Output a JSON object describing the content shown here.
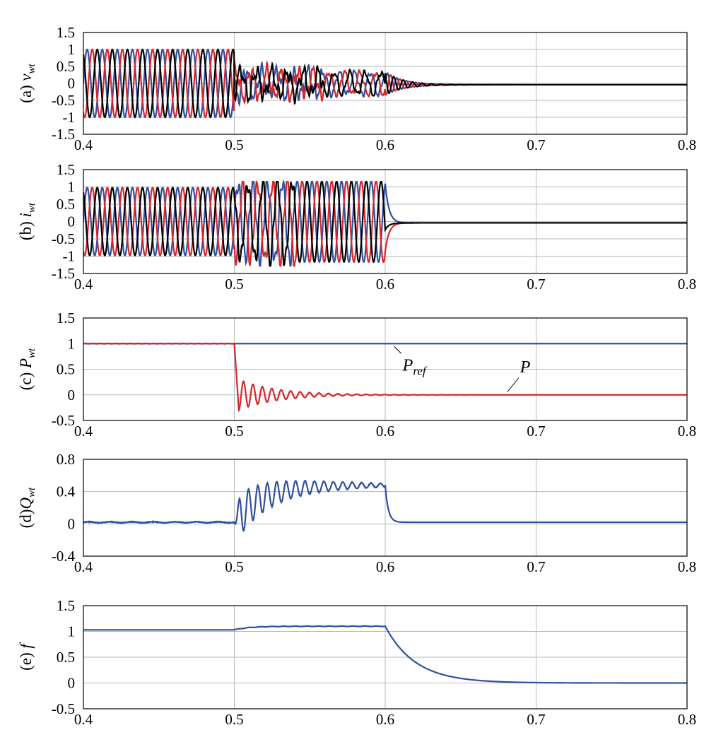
{
  "chart_data": [
    {
      "type": "line",
      "ylabel": "(a) ",
      "ylabel_var": "v",
      "ylabel_sub": "wt",
      "xlim": [
        0.4,
        0.8
      ],
      "ylim": [
        -1.5,
        1.5
      ],
      "xticks": [
        "0.4",
        "0.5",
        "0.6",
        "0.7",
        "0.8"
      ],
      "yticks": [
        "1.5",
        "1",
        "0.5",
        "0",
        "-0.5",
        "-1",
        "-1.5"
      ],
      "grid": true,
      "signal": "three-phase voltage: amplitude 1 pu at 100 Hz until fault at 0.5 s, distorted ~0.3 pu during fault, decays to 0 after 0.6 s",
      "series": [
        {
          "color": "#2f4fa0",
          "phase_deg": 0
        },
        {
          "color": "#d7262b",
          "phase_deg": -120
        },
        {
          "color": "#000000",
          "phase_deg": 120
        }
      ]
    },
    {
      "type": "line",
      "ylabel": "(b) ",
      "ylabel_var": "i",
      "ylabel_sub": "wt",
      "xlim": [
        0.4,
        0.8
      ],
      "ylim": [
        -1.5,
        1.5
      ],
      "xticks": [
        "0.4",
        "0.5",
        "0.6",
        "0.7",
        "0.8"
      ],
      "yticks": [
        "1.5",
        "1",
        "0.5",
        "0",
        "-0.5",
        "-1",
        "-1.5"
      ],
      "grid": true,
      "signal": "three-phase current: amplitude 1 pu at 100 Hz, distorted just after 0.5 s, rises to ~1.2 pu during fault, drops to 0 at 0.6 s",
      "series": [
        {
          "color": "#2f4fa0",
          "phase_deg": 0
        },
        {
          "color": "#d7262b",
          "phase_deg": -120
        },
        {
          "color": "#000000",
          "phase_deg": 120
        }
      ]
    },
    {
      "type": "line",
      "ylabel": "(c) ",
      "ylabel_var": "P",
      "ylabel_sub": "wt",
      "xlim": [
        0.4,
        0.8
      ],
      "ylim": [
        -0.5,
        1.5
      ],
      "xticks": [
        "0.4",
        "0.5",
        "0.6",
        "0.7",
        "0.8"
      ],
      "yticks": [
        "1.5",
        "1",
        "0.5",
        "0",
        "-0.5"
      ],
      "grid": true,
      "annotations": [
        {
          "text": "P",
          "sub": "ref",
          "x": 0.605,
          "y": 1.0
        },
        {
          "text": "P",
          "sub": "",
          "x": 0.68,
          "y": 0.0
        }
      ],
      "series": [
        {
          "name": "Pref",
          "color": "#2f4fa0",
          "description": "constant 1.0 from 0.4 to 0.8 s"
        },
        {
          "name": "P",
          "color": "#d7262b",
          "description": "1.0 until 0.5 s, drops to -0.3, damped oscillation (±0.35) decaying to 0 by ~0.58 s, then 0"
        }
      ]
    },
    {
      "type": "line",
      "ylabel": "(d)",
      "ylabel_var": "Q",
      "ylabel_sub": "wt",
      "xlim": [
        0.4,
        0.8
      ],
      "ylim": [
        -0.4,
        0.8
      ],
      "xticks": [
        "0.4",
        "0.5",
        "0.6",
        "0.7",
        "0.8"
      ],
      "yticks": [
        "0.8",
        "0.4",
        "0",
        "-0.4"
      ],
      "grid": true,
      "series": [
        {
          "color": "#2f4fa0",
          "description": "~0.02 until 0.5 s, dips to -0.23, oscillates while rising to ~0.46 by 0.55 s, holds until 0.6 s, then drops to ~0.02"
        }
      ]
    },
    {
      "type": "line",
      "ylabel": "(e) ",
      "ylabel_var": "f",
      "ylabel_sub": "",
      "xlim": [
        0.4,
        0.8
      ],
      "ylim": [
        -0.5,
        1.5
      ],
      "xticks": [
        "0.4",
        "0.5",
        "0.6",
        "0.7",
        "0.8"
      ],
      "yticks": [
        "1.5",
        "1",
        "0.5",
        "0",
        "-0.5"
      ],
      "grid": true,
      "series": [
        {
          "color": "#2f4fa0",
          "description": "1.03 until 0.5 s, rises to ~1.1 by 0.52 s, flat until 0.6 s, exponential decay to 0 (tau ~0.02 s)"
        }
      ]
    }
  ]
}
